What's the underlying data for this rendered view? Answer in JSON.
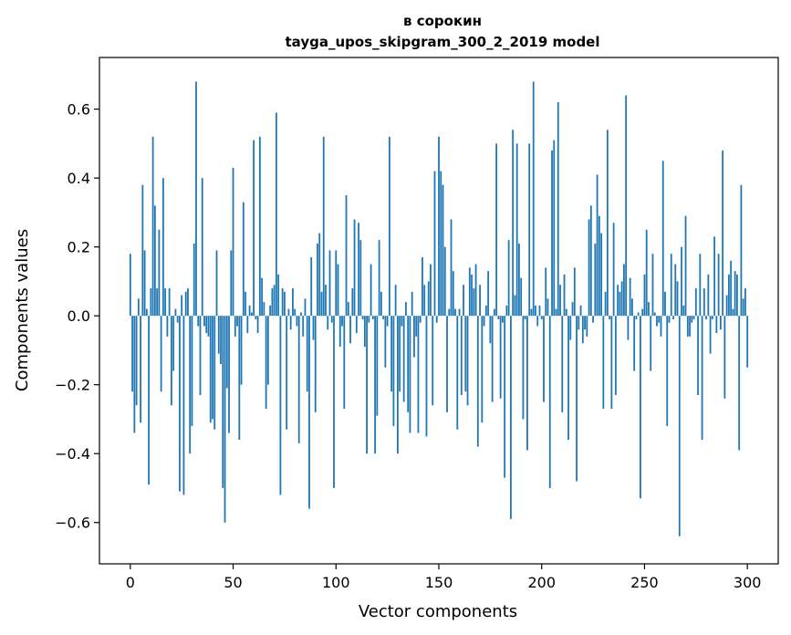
{
  "chart_data": {
    "type": "bar",
    "title_line1": "в сорокин",
    "title_line2": "tayga_upos_skipgram_300_2_2019 model",
    "xlabel": "Vector components",
    "ylabel": "Components values",
    "xlim": [
      -15,
      315
    ],
    "ylim": [
      -0.72,
      0.75
    ],
    "xticks": [
      0,
      50,
      100,
      150,
      200,
      250,
      300
    ],
    "xtick_labels": [
      "0",
      "50",
      "100",
      "150",
      "200",
      "250",
      "300"
    ],
    "yticks": [
      -0.6,
      -0.4,
      -0.2,
      0.0,
      0.2,
      0.4,
      0.6
    ],
    "ytick_labels": [
      "−0.6",
      "−0.4",
      "−0.2",
      "0.0",
      "0.2",
      "0.4",
      "0.6"
    ],
    "bar_color": "#1f77b4",
    "values": [
      0.18,
      -0.22,
      -0.34,
      -0.26,
      0.05,
      -0.31,
      0.38,
      0.19,
      0.02,
      -0.49,
      0.08,
      0.52,
      0.32,
      0.08,
      0.25,
      -0.22,
      0.4,
      0.08,
      -0.06,
      0.08,
      -0.26,
      -0.16,
      0.02,
      -0.02,
      -0.51,
      0.06,
      -0.52,
      0.07,
      0.08,
      -0.4,
      -0.32,
      0.21,
      0.68,
      -0.03,
      -0.23,
      0.4,
      -0.03,
      -0.05,
      -0.06,
      -0.31,
      -0.3,
      -0.33,
      0.19,
      -0.11,
      -0.14,
      -0.5,
      -0.6,
      -0.21,
      -0.34,
      0.19,
      0.43,
      -0.06,
      -0.03,
      -0.36,
      -0.2,
      0.33,
      0.07,
      -0.05,
      0.03,
      0.01,
      0.51,
      -0.01,
      -0.05,
      0.52,
      0.11,
      0.04,
      -0.27,
      -0.2,
      0.03,
      0.08,
      0.09,
      0.59,
      0.12,
      -0.52,
      0.08,
      0.07,
      -0.33,
      0.02,
      -0.04,
      0.08,
      0.02,
      -0.03,
      -0.37,
      0.01,
      -0.06,
      0.05,
      -0.22,
      -0.56,
      0.17,
      -0.07,
      -0.28,
      0.21,
      0.24,
      0.07,
      0.52,
      0.09,
      -0.04,
      0.19,
      -0.02,
      -0.5,
      0.19,
      0.15,
      -0.09,
      -0.03,
      -0.27,
      0.35,
      0.04,
      -0.08,
      0.08,
      0.28,
      -0.05,
      0.27,
      0.22,
      -0.01,
      -0.09,
      -0.4,
      -0.02,
      0.15,
      -0.01,
      -0.4,
      -0.29,
      0.22,
      0.07,
      -0.01,
      -0.15,
      -0.03,
      0.52,
      -0.22,
      -0.32,
      0.09,
      -0.4,
      -0.22,
      -0.03,
      -0.25,
      0.04,
      -0.28,
      -0.34,
      0.07,
      -0.12,
      -0.06,
      -0.34,
      -0.02,
      0.17,
      0.09,
      -0.35,
      0.1,
      0.15,
      -0.26,
      0.42,
      -0.02,
      0.52,
      0.42,
      0.38,
      0.2,
      -0.28,
      0.02,
      0.28,
      0.13,
      0.02,
      -0.33,
      0.02,
      -0.23,
      0.09,
      -0.22,
      -0.26,
      0.14,
      0.12,
      0.08,
      0.15,
      -0.38,
      0.09,
      -0.31,
      -0.03,
      0.03,
      0.13,
      -0.08,
      -0.25,
      0.02,
      0.5,
      -0.01,
      -0.24,
      -0.02,
      -0.47,
      0.03,
      0.22,
      -0.59,
      0.54,
      0.06,
      0.5,
      0.21,
      0.11,
      -0.3,
      -0.01,
      -0.39,
      0.5,
      0.02,
      0.68,
      0.03,
      -0.03,
      0.03,
      -0.01,
      -0.25,
      0.14,
      0.05,
      -0.5,
      0.48,
      0.51,
      0.02,
      0.62,
      0.09,
      -0.28,
      0.12,
      0.02,
      -0.36,
      -0.07,
      0.04,
      0.14,
      -0.48,
      -0.04,
      0.03,
      -0.08,
      -0.04,
      -0.06,
      0.28,
      0.32,
      -0.02,
      0.21,
      0.41,
      0.29,
      0.24,
      -0.27,
      0.07,
      0.54,
      -0.01,
      -0.27,
      0.27,
      -0.23,
      0.09,
      0.07,
      0.1,
      0.15,
      0.64,
      -0.07,
      0.11,
      0.05,
      -0.16,
      -0.01,
      0.01,
      -0.53,
      0.02,
      0.12,
      0.25,
      0.04,
      -0.16,
      0.18,
      0.01,
      -0.03,
      -0.02,
      -0.06,
      0.45,
      0.07,
      -0.32,
      -0.02,
      0.18,
      -0.01,
      0.15,
      0.1,
      -0.64,
      0.2,
      0.03,
      0.29,
      -0.06,
      -0.06,
      -0.02,
      -0.01,
      0.08,
      -0.23,
      0.18,
      -0.36,
      0.08,
      -0.01,
      0.12,
      -0.11,
      -0.01,
      0.23,
      -0.05,
      0.18,
      -0.04,
      0.48,
      -0.24,
      0.06,
      0.12,
      0.16,
      0.02,
      0.13,
      0.12,
      -0.39,
      0.38,
      0.05,
      0.08,
      -0.15
    ]
  }
}
